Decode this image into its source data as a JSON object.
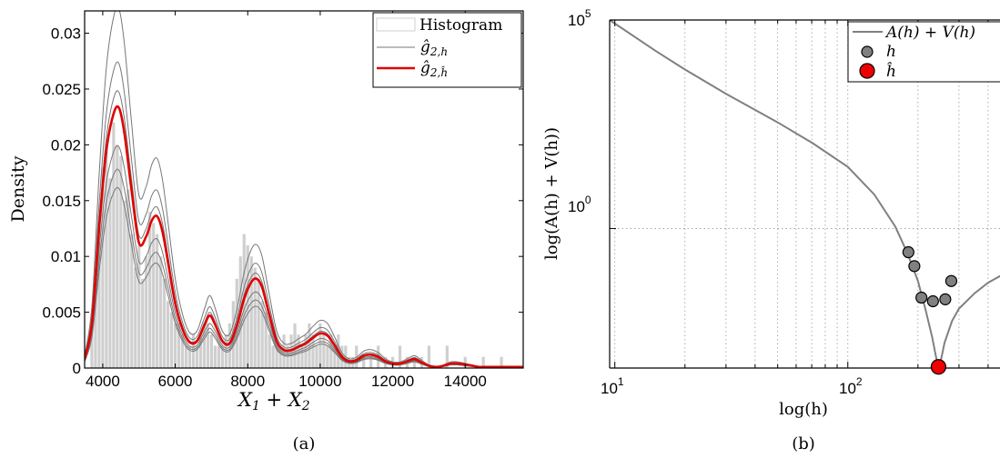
{
  "chart_data": [
    {
      "type": "histogram+line",
      "caption": "(a)",
      "xlabel": "X₁ + X₂",
      "ylabel": "Density",
      "xlim": [
        3500,
        15600
      ],
      "ylim": [
        0,
        0.032
      ],
      "xticks": [
        "4000",
        "6000",
        "8000",
        "10000",
        "12000",
        "14000"
      ],
      "xtick_values": [
        4000,
        6000,
        8000,
        10000,
        12000,
        14000
      ],
      "yticks": [
        "0",
        "0.005",
        "0.01",
        "0.015",
        "0.02",
        "0.025",
        "0.03"
      ],
      "ytick_values": [
        0,
        0.005,
        0.01,
        0.015,
        0.02,
        0.025,
        0.03
      ],
      "legend": {
        "placement": "top-right",
        "entries": [
          "Histogram",
          "ĝ2,h",
          "ĝ2,ĥ"
        ]
      },
      "colors": {
        "histogram": "#cfcfcf",
        "thin": "#777777",
        "selected": "#e00000"
      },
      "histogram": {
        "bin_centers": [
          3700,
          3800,
          3900,
          4000,
          4100,
          4200,
          4300,
          4400,
          4500,
          4600,
          4700,
          4800,
          4900,
          5000,
          5100,
          5200,
          5300,
          5400,
          5500,
          5600,
          5700,
          5800,
          5900,
          6000,
          6100,
          6200,
          6300,
          6400,
          6500,
          6600,
          6700,
          6800,
          6900,
          7000,
          7100,
          7200,
          7300,
          7400,
          7500,
          7600,
          7700,
          7800,
          7900,
          8000,
          8100,
          8200,
          8300,
          8400,
          8500,
          8600,
          8700,
          8800,
          8900,
          9000,
          9100,
          9200,
          9300,
          9400,
          9500,
          9600,
          9700,
          9800,
          9900,
          10000,
          10100,
          10200,
          10300,
          10400,
          10500,
          10600,
          10700,
          10800,
          10900,
          11000,
          11200,
          11400,
          11600,
          11800,
          12000,
          12200,
          12400,
          12600,
          12800,
          13000,
          13500,
          14000,
          14500,
          15000
        ],
        "heights": [
          0.004,
          0.008,
          0.013,
          0.018,
          0.02,
          0.017,
          0.022,
          0.02,
          0.019,
          0.015,
          0.016,
          0.012,
          0.009,
          0.011,
          0.008,
          0.01,
          0.014,
          0.013,
          0.012,
          0.01,
          0.008,
          0.006,
          0.005,
          0.004,
          0.004,
          0.003,
          0.002,
          0.002,
          0.003,
          0.002,
          0.003,
          0.004,
          0.004,
          0.003,
          0.002,
          0.002,
          0.002,
          0.003,
          0.004,
          0.006,
          0.008,
          0.01,
          0.012,
          0.011,
          0.01,
          0.009,
          0.008,
          0.006,
          0.005,
          0.003,
          0.002,
          0.002,
          0.002,
          0.003,
          0.002,
          0.003,
          0.004,
          0.003,
          0.002,
          0.003,
          0.004,
          0.003,
          0.002,
          0.004,
          0.003,
          0.002,
          0.003,
          0.002,
          0.003,
          0.002,
          0.002,
          0.001,
          0.001,
          0.002,
          0.001,
          0.001,
          0.002,
          0.001,
          0.001,
          0.002,
          0.001,
          0.001,
          0.001,
          0.002,
          0.002,
          0.001,
          0.001,
          0.001
        ]
      },
      "selected_curve": {
        "x": [
          3500,
          3700,
          3900,
          4100,
          4300,
          4450,
          4600,
          4800,
          5000,
          5200,
          5350,
          5500,
          5650,
          5800,
          6000,
          6200,
          6400,
          6600,
          6800,
          6950,
          7100,
          7300,
          7500,
          7700,
          7900,
          8100,
          8250,
          8400,
          8600,
          8800,
          9000,
          9200,
          9400,
          9600,
          9800,
          10000,
          10200,
          10400,
          10600,
          10800,
          11000,
          11200,
          11400,
          11600,
          11800,
          12000,
          12200,
          12400,
          12600,
          12800,
          13000,
          13200,
          13400,
          13600,
          13800,
          14000,
          14200,
          14400,
          14600,
          14800,
          15000,
          15200,
          15400,
          15600
        ],
        "y": [
          0.0008,
          0.004,
          0.0125,
          0.0195,
          0.0228,
          0.0233,
          0.021,
          0.0158,
          0.0112,
          0.0118,
          0.0132,
          0.0136,
          0.0122,
          0.0095,
          0.0058,
          0.0035,
          0.0023,
          0.0024,
          0.0038,
          0.0047,
          0.0039,
          0.0024,
          0.0022,
          0.0038,
          0.0062,
          0.0077,
          0.008,
          0.0072,
          0.0047,
          0.0024,
          0.0016,
          0.0016,
          0.0019,
          0.0022,
          0.0027,
          0.0031,
          0.0029,
          0.002,
          0.001,
          0.0006,
          0.0007,
          0.0011,
          0.0012,
          0.001,
          0.0006,
          0.0004,
          0.0004,
          0.0006,
          0.0008,
          0.0005,
          0.0002,
          0.0001,
          0.0002,
          0.0004,
          0.0004,
          0.0003,
          0.0002,
          0.0001,
          0.0001,
          0.0001,
          0.0001,
          0.0001,
          0.0001,
          0.0001
        ]
      },
      "thin_curve_scales": [
        1.38,
        1.17,
        0.76,
        0.69,
        0.85,
        1.06
      ],
      "legend_labels": {
        "histogram": "Histogram",
        "thin": "ĝ",
        "thin_sub": "2,h",
        "selected": "ĝ",
        "selected_sub": "2,ĥ"
      }
    },
    {
      "type": "line",
      "caption": "(b)",
      "xlabel": "log(h)",
      "ylabel": "log(A(h) + V(h))",
      "x_scale": "log",
      "y_scale": "log",
      "xlim": [
        9.5,
        600
      ],
      "ylim": [
        0.00045,
        100000
      ],
      "xticks": [
        {
          "base": "10",
          "exp": "1",
          "value": 10
        },
        {
          "base": "10",
          "exp": "2",
          "value": 100
        }
      ],
      "yticks": [
        {
          "base": "10",
          "exp": "5",
          "value": 100000
        },
        {
          "base": "10",
          "exp": "0",
          "value": 1
        }
      ],
      "grid": true,
      "legend": {
        "placement": "top-right",
        "entries": [
          "A(h) + V(h)",
          "h",
          "ĥ"
        ]
      },
      "legend_labels": {
        "curve": "A(h) + V(h)",
        "points": "h",
        "selected": "ĥ"
      },
      "colors": {
        "curve": "#808080",
        "points": "#808080",
        "selected": "#ee0000"
      },
      "curve": {
        "x": [
          9.5,
          15,
          20,
          30,
          50,
          70,
          100,
          130,
          160,
          180,
          200,
          215,
          230,
          240,
          245,
          250,
          260,
          280,
          300,
          350,
          400,
          500,
          600
        ],
        "y": [
          100000,
          18000,
          6500,
          1700,
          350,
          115,
          30,
          6.5,
          1.1,
          0.26,
          0.055,
          0.012,
          0.0025,
          0.00075,
          0.00048,
          0.00062,
          0.0018,
          0.006,
          0.012,
          0.028,
          0.05,
          0.1,
          0.15
        ]
      },
      "points": {
        "x": [
          182,
          193,
          207,
          232,
          262,
          278
        ],
        "y": [
          0.27,
          0.125,
          0.022,
          0.018,
          0.02,
          0.055
        ]
      },
      "selected_point": {
        "x": 245,
        "y": 0.00048
      }
    }
  ]
}
